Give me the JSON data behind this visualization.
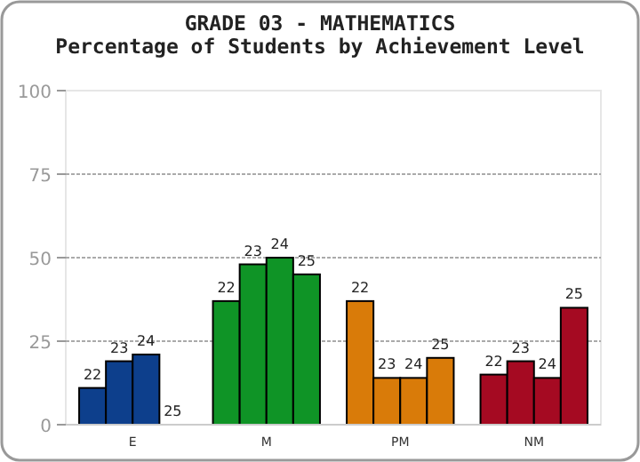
{
  "chart_data": {
    "type": "bar",
    "title": "GRADE 03 - MATHEMATICS",
    "subtitle": "Percentage of Students by Achievement Level",
    "categories": [
      "E",
      "M",
      "PM",
      "NM"
    ],
    "series": [
      {
        "name": "22",
        "colors": [
          "#0d3f8c",
          "#0f9426",
          "#d97b09",
          "#a50a22"
        ],
        "values": [
          11,
          37,
          37,
          15
        ]
      },
      {
        "name": "23",
        "colors": [
          "#0d3f8c",
          "#0f9426",
          "#d97b09",
          "#a50a22"
        ],
        "values": [
          19,
          48,
          14,
          19
        ]
      },
      {
        "name": "24",
        "colors": [
          "#0d3f8c",
          "#0f9426",
          "#d97b09",
          "#a50a22"
        ],
        "values": [
          21,
          50,
          14,
          14
        ]
      },
      {
        "name": "25",
        "colors": [
          "#0d3f8c",
          "#0f9426",
          "#d97b09",
          "#a50a22"
        ],
        "values": [
          0,
          45,
          20,
          35
        ]
      }
    ],
    "ylim": [
      0,
      100
    ],
    "yticks": [
      0,
      25,
      50,
      75,
      100
    ],
    "grid": "y"
  }
}
